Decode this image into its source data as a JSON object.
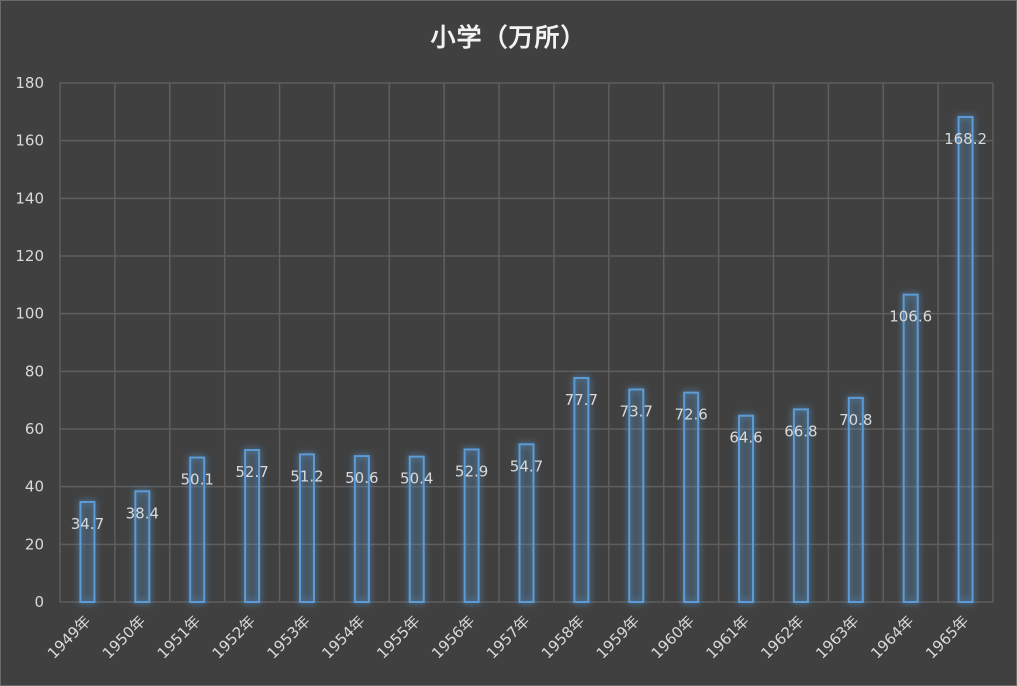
{
  "chart_data": {
    "type": "bar",
    "title": "小学（万所）",
    "categories": [
      "1949年",
      "1950年",
      "1951年",
      "1952年",
      "1953年",
      "1954年",
      "1955年",
      "1956年",
      "1957年",
      "1958年",
      "1959年",
      "1960年",
      "1961年",
      "1962年",
      "1963年",
      "1964年",
      "1965年"
    ],
    "values": [
      34.7,
      38.4,
      50.1,
      52.7,
      51.2,
      50.6,
      50.4,
      52.9,
      54.7,
      77.7,
      73.7,
      72.6,
      64.6,
      66.8,
      70.8,
      106.6,
      168.2
    ],
    "data_labels": [
      "34.7",
      "38.4",
      "50.1",
      "52.7",
      "51.2",
      "50.6",
      "50.4",
      "52.9",
      "54.7",
      "77.7",
      "73.7",
      "72.6",
      "64.6",
      "66.8",
      "70.8",
      "106.6",
      "168.2"
    ],
    "y_ticks": [
      "0",
      "20",
      "40",
      "60",
      "80",
      "100",
      "120",
      "140",
      "160",
      "180"
    ],
    "ylim": [
      0,
      180
    ],
    "grid": true,
    "legend": "none",
    "colors": {
      "background": "#404040",
      "grid": "#5e5e5e",
      "bar_stroke": "#5b9bd5",
      "bar_glow": "#2e75b6",
      "text": "#d9d9d9",
      "title": "#f2f2f2"
    }
  }
}
